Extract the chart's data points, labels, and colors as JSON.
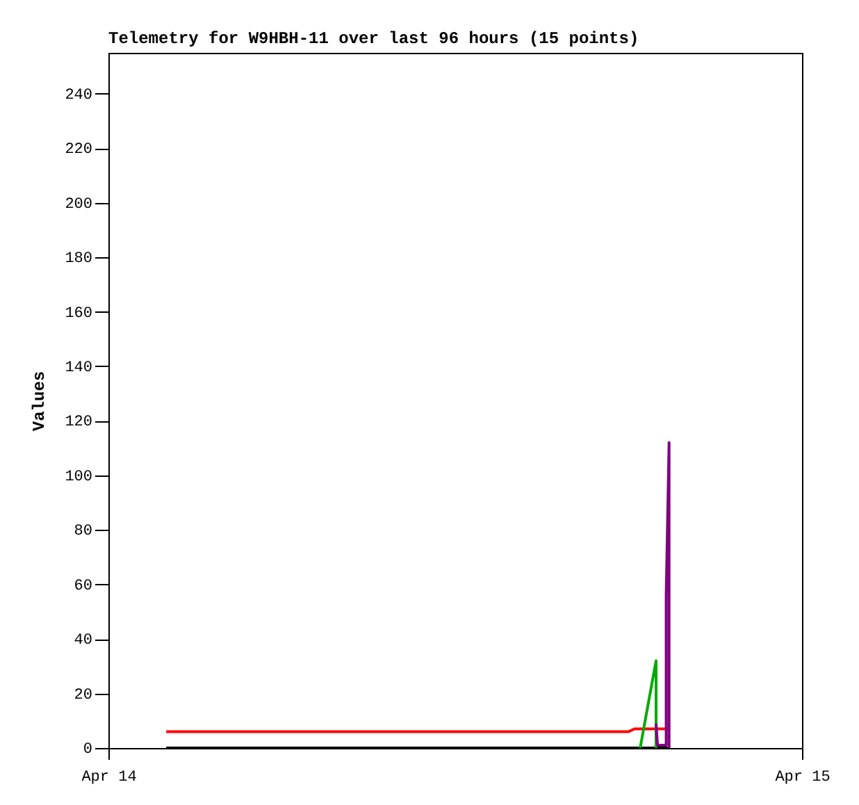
{
  "chart_data": {
    "type": "line",
    "title": "Telemetry for W9HBH-11 over last 96 hours (15 points)",
    "ylabel": "Values",
    "xlim": [
      "--04-14T00:00",
      "--04-15T00:00"
    ],
    "xticks": [
      {
        "value": "--04-14T00:00",
        "label": "Apr 14"
      },
      {
        "value": "--04-15T00:00",
        "label": "Apr 15"
      }
    ],
    "ylim": [
      0,
      255
    ],
    "yticks": [
      0,
      20,
      40,
      60,
      80,
      100,
      120,
      140,
      160,
      180,
      200,
      220,
      240
    ],
    "grid": false,
    "legend": false,
    "marker": "none",
    "line_style": "solid",
    "series": [
      {
        "color": "#ff0000",
        "x": [
          "--04-14T02:00",
          "--04-14T18:00",
          "--04-14T18:12",
          "--04-14T19:24"
        ],
        "values": [
          6,
          6,
          7,
          7
        ]
      },
      {
        "color": "#000000",
        "x": [
          "--04-14T02:00",
          "--04-14T19:24"
        ],
        "values": [
          0,
          0
        ]
      },
      {
        "color": "#00aa00",
        "x": [
          "--04-14T18:24",
          "--04-14T18:57",
          "--04-14T18:57"
        ],
        "values": [
          0,
          32,
          0
        ]
      },
      {
        "color": "#800080",
        "x": [
          "--04-14T18:57",
          "--04-14T19:00",
          "--04-14T19:18",
          "--04-14T19:18",
          "--04-14T19:24",
          "--04-14T19:24"
        ],
        "values": [
          9,
          1,
          1,
          56,
          112,
          0
        ]
      }
    ]
  }
}
